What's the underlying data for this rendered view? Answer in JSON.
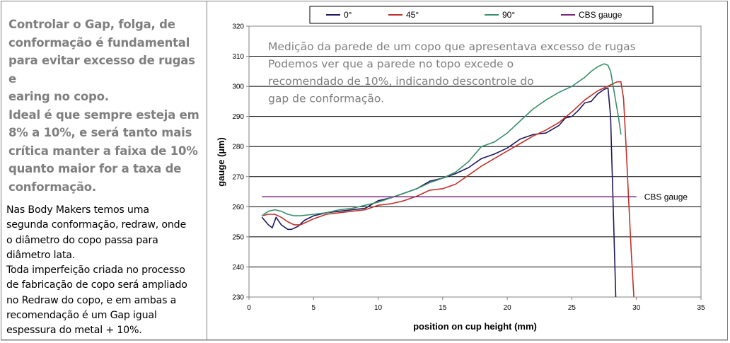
{
  "left_panel": {
    "heading_lines": [
      "Controlar o Gap, folga, de",
      "conformação é fundamental",
      "para evitar excesso de rugas e",
      "earing no copo.",
      "Ideal é que sempre esteja em",
      "8% a 10%, e será tanto mais",
      "crítica manter a faixa de 10%",
      "quanto maior for a taxa de",
      "conformação."
    ],
    "body_lines": [
      "Nas Body Makers temos uma",
      "segunda conformação, redraw, onde",
      "o diâmetro do copo passa para",
      "diâmetro lata.",
      "Toda imperfeição criada no processo",
      "de fabricação de copo será ampliado",
      "no Redraw do copo, e em ambas a",
      "recomendação é um Gap igual",
      "espessura do metal + 10%."
    ]
  },
  "chart_data": {
    "type": "line",
    "xlabel": "position on cup height (mm)",
    "ylabel": "gauge (µm)",
    "xlim": [
      0,
      35
    ],
    "ylim": [
      230,
      320
    ],
    "xticks": [
      0,
      5,
      10,
      15,
      20,
      25,
      30,
      35
    ],
    "yticks": [
      230,
      240,
      250,
      260,
      270,
      280,
      290,
      300,
      310,
      320
    ],
    "grid": "horizontal",
    "legend_position": "top",
    "annotation_lines": [
      "Medição da parede de um copo que apresentava excesso de rugas",
      "Podemos ver que a parede no topo excede o",
      "recomendado de 10%, indicando descontrole do",
      "gap de conformação."
    ],
    "reference_label": "CBS gauge",
    "series": [
      {
        "name": "0°",
        "color": "#1f1a60",
        "x": [
          1,
          1.5,
          1.8,
          2.1,
          2.5,
          3,
          3.3,
          3.8,
          4.3,
          5,
          6,
          7,
          8,
          9,
          10,
          11,
          12,
          13,
          14,
          15,
          16,
          17,
          18,
          19,
          20,
          21,
          22,
          23,
          24,
          24.5,
          25,
          25.5,
          26,
          26.5,
          27,
          27.5,
          27.8,
          28,
          28.1,
          28.2,
          28.3,
          28.4
        ],
        "y": [
          256.5,
          254,
          253,
          256.5,
          254,
          252.5,
          252.5,
          253.5,
          255.5,
          257,
          258,
          258.5,
          259,
          259.5,
          262,
          263,
          264.5,
          266,
          268.5,
          269.5,
          271,
          273,
          276,
          277.5,
          279.5,
          282.5,
          284,
          284.5,
          287,
          289.5,
          290,
          292,
          294.5,
          295,
          297.5,
          299,
          299.5,
          290,
          275,
          260,
          245,
          230
        ]
      },
      {
        "name": "45°",
        "color": "#c0312b",
        "x": [
          1,
          1.5,
          2,
          2.5,
          3,
          3.5,
          4,
          5,
          6,
          7,
          8,
          9,
          10,
          11,
          12,
          13,
          14,
          15,
          16,
          17,
          18,
          19,
          20,
          21,
          22,
          23,
          24,
          25,
          26,
          27,
          28,
          28.5,
          28.8,
          29,
          29.2,
          29.4,
          29.6,
          29.8
        ],
        "y": [
          257,
          257.5,
          257.5,
          256.5,
          255,
          254,
          254,
          256,
          257.5,
          258,
          258.5,
          259,
          260.5,
          261,
          262,
          263.5,
          265.5,
          266,
          267.5,
          270.5,
          273.5,
          276,
          278.5,
          281,
          283.5,
          285.5,
          288,
          291.5,
          295.5,
          298.5,
          300.5,
          301.5,
          301.5,
          296,
          280,
          262,
          245,
          230
        ]
      },
      {
        "name": "90°",
        "color": "#3a8f6a",
        "x": [
          1,
          1.5,
          2,
          2.5,
          3,
          3.5,
          4,
          5,
          6,
          7,
          8,
          9,
          10,
          11,
          12,
          13,
          14,
          15,
          16,
          17,
          18,
          19,
          20,
          21,
          22,
          23,
          24,
          25,
          26,
          26.5,
          27,
          27.5,
          27.8,
          28,
          28.2,
          28.4,
          28.6,
          28.8
        ],
        "y": [
          257,
          258.5,
          259,
          258.5,
          257.5,
          257,
          257,
          257.5,
          258,
          259,
          259.5,
          260.5,
          261.5,
          263,
          264.5,
          266,
          268,
          269.5,
          271.5,
          275,
          280,
          281.5,
          284.5,
          288.5,
          292.5,
          295.5,
          298,
          300,
          303,
          305,
          306.5,
          307.5,
          307,
          305,
          300,
          295,
          290,
          284
        ]
      },
      {
        "name": "CBS gauge",
        "color": "#7a2a7e",
        "x": [
          1,
          30
        ],
        "y": [
          263.3,
          263.3
        ]
      }
    ]
  }
}
